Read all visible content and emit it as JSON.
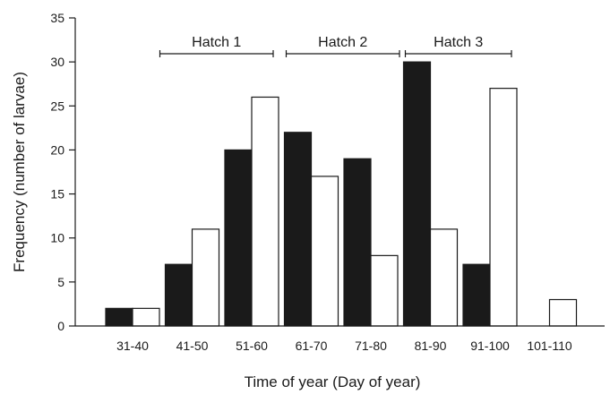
{
  "chart_data": {
    "type": "bar",
    "title": "",
    "xlabel": "Time of year (Day of year)",
    "ylabel": "Frequency (number of larvae)",
    "ylim": [
      0,
      35
    ],
    "yticks": [
      0,
      5,
      10,
      15,
      20,
      25,
      30,
      35
    ],
    "grid": false,
    "categories": [
      "31-40",
      "41-50",
      "51-60",
      "61-70",
      "71-80",
      "81-90",
      "91-100",
      "101-110"
    ],
    "series": [
      {
        "color": "#1a1a1a",
        "values": [
          2,
          7,
          20,
          22,
          19,
          30,
          7,
          0
        ]
      },
      {
        "color": "#ffffff",
        "values": [
          2,
          11,
          26,
          17,
          8,
          11,
          27,
          3
        ]
      }
    ],
    "annotations": [
      {
        "label": "Hatch 1",
        "from_category": "41-50",
        "to_category": "51-60"
      },
      {
        "label": "Hatch 2",
        "from_category": "61-70",
        "to_category": "71-80"
      },
      {
        "label": "Hatch 3",
        "from_category": "81-90",
        "to_category": "91-100"
      }
    ]
  }
}
